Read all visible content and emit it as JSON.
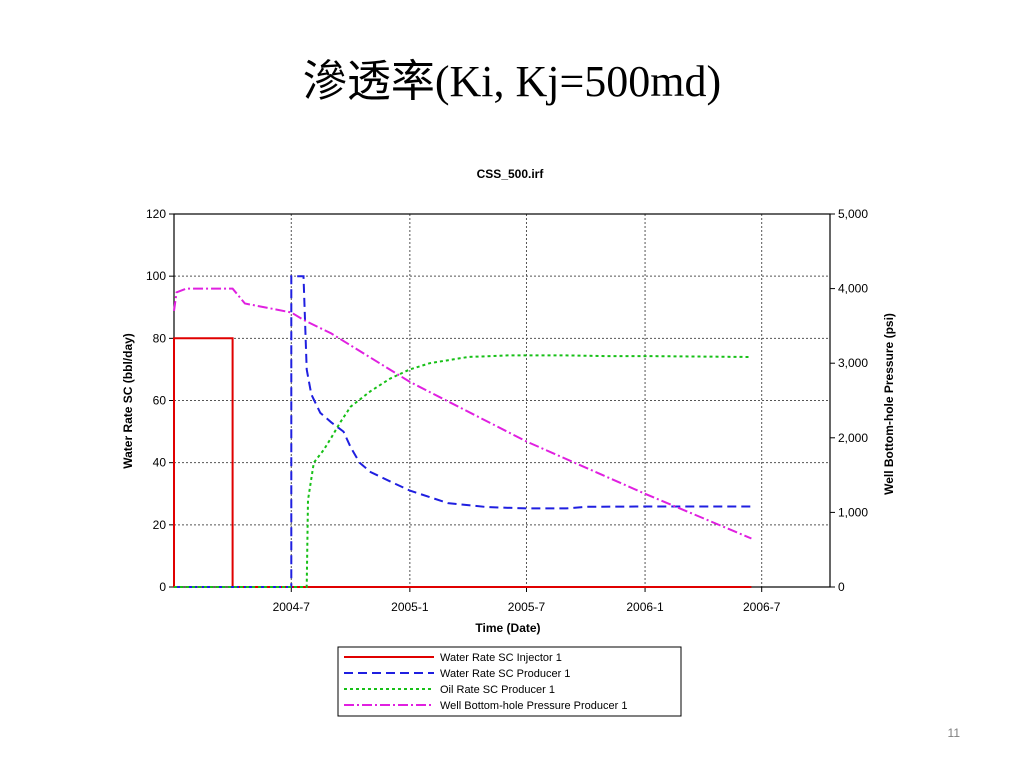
{
  "slide": {
    "title": "滲透率(Ki, Kj=500md)",
    "number": "11"
  },
  "chart_data": {
    "type": "line",
    "title": "CSS_500.irf",
    "xlabel": "Time (Date)",
    "ylabel": "Water Rate SC (bbl/day)",
    "y2label": "Well Bottom-hole Pressure (psi)",
    "xlim": [
      "2004-01-01",
      "2006-10-15"
    ],
    "ylim": [
      0,
      120
    ],
    "y2lim": [
      0,
      5000
    ],
    "xticks": [
      {
        "date": "2004-07-01",
        "label": "2004-7"
      },
      {
        "date": "2005-01-01",
        "label": "2005-1"
      },
      {
        "date": "2005-07-01",
        "label": "2005-7"
      },
      {
        "date": "2006-01-01",
        "label": "2006-1"
      },
      {
        "date": "2006-07-01",
        "label": "2006-7"
      }
    ],
    "yticks": [
      "0",
      "20",
      "40",
      "60",
      "80",
      "100",
      "120"
    ],
    "y2ticks": [
      "0",
      "1,000",
      "2,000",
      "3,000",
      "4,000",
      "5,000"
    ],
    "grid": true,
    "legend_position": "bottom",
    "series": [
      {
        "name": "Water Rate SC Injector 1",
        "color": "#e00000",
        "dash": "solid",
        "axis": "left",
        "x": [
          "2004-01-01",
          "2004-01-01",
          "2004-02-01",
          "2004-03-01",
          "2004-04-01",
          "2004-04-01",
          "2004-07-01",
          "2005-07-01",
          "2006-06-15"
        ],
        "y": [
          0,
          80,
          80,
          80,
          80,
          0,
          0,
          0,
          0
        ]
      },
      {
        "name": "Water Rate SC Producer 1",
        "color": "#1f1fe0",
        "dash": "longdash",
        "axis": "left",
        "x": [
          "2004-01-01",
          "2004-07-01",
          "2004-07-01",
          "2004-07-20",
          "2004-07-25",
          "2004-08-01",
          "2004-08-15",
          "2004-09-01",
          "2004-09-20",
          "2004-10-01",
          "2004-10-15",
          "2004-11-01",
          "2004-12-01",
          "2005-01-01",
          "2005-03-01",
          "2005-05-01",
          "2005-07-01",
          "2005-09-01",
          "2005-10-01",
          "2006-01-01",
          "2006-03-01",
          "2006-06-15"
        ],
        "y": [
          0,
          0,
          100,
          100,
          70,
          62,
          56,
          53,
          50,
          45,
          40,
          37,
          34,
          31,
          27,
          25.7,
          25.3,
          25.3,
          25.8,
          25.9,
          25.9,
          25.9
        ]
      },
      {
        "name": "Oil Rate SC Producer 1",
        "color": "#17c017",
        "dash": "dotted",
        "axis": "left",
        "x": [
          "2004-01-01",
          "2004-07-25",
          "2004-07-27",
          "2004-08-05",
          "2004-08-20",
          "2004-09-01",
          "2004-09-15",
          "2004-10-01",
          "2004-11-01",
          "2004-12-01",
          "2005-01-01",
          "2005-02-01",
          "2005-04-01",
          "2005-06-01",
          "2005-07-01",
          "2005-09-01",
          "2005-11-01",
          "2006-01-01",
          "2006-03-01",
          "2006-06-15"
        ],
        "y": [
          0,
          0,
          28,
          40,
          44,
          48,
          53,
          58,
          63,
          67,
          70,
          72,
          74,
          74.5,
          74.5,
          74.5,
          74.3,
          74.3,
          74.2,
          74
        ]
      },
      {
        "name": "Well Bottom-hole Pressure Producer 1",
        "color": "#e020e0",
        "dash": "dashdot",
        "axis": "right",
        "x": [
          "2004-01-01",
          "2004-01-05",
          "2004-01-20",
          "2004-04-01",
          "2004-04-20",
          "2004-06-01",
          "2004-07-01",
          "2004-07-20",
          "2004-09-01",
          "2005-01-01",
          "2005-07-01",
          "2006-01-01",
          "2006-06-15"
        ],
        "y": [
          3700,
          3950,
          4000,
          4000,
          3800,
          3730,
          3680,
          3580,
          3400,
          2750,
          1950,
          1250,
          650
        ]
      }
    ]
  }
}
